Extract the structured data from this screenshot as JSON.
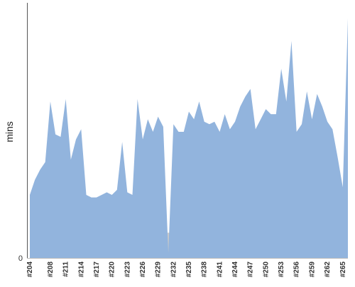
{
  "chart_data": {
    "type": "area",
    "title": "",
    "xlabel": "",
    "ylabel": "mins",
    "ylim": [
      0,
      100
    ],
    "grid": false,
    "legend": "none",
    "colors": {
      "fill": "#92b4dd",
      "gap_fill": "#c9c9c9",
      "axis": "#555555"
    },
    "y_ticks": [
      0
    ],
    "y_tick_labels": [
      "0"
    ],
    "x_tick_labels": [
      "#204",
      "#208",
      "#211",
      "#214",
      "#217",
      "#220",
      "#223",
      "#226",
      "#229",
      "#232",
      "#235",
      "#238",
      "#241",
      "#244",
      "#247",
      "#250",
      "#253",
      "#256",
      "#259",
      "#262",
      "#265"
    ],
    "categories": [
      "#204",
      "#205",
      "#206",
      "#207",
      "#208",
      "#209",
      "#210",
      "#211",
      "#212",
      "#213",
      "#214",
      "#215",
      "#216",
      "#217",
      "#218",
      "#219",
      "#220",
      "#221",
      "#222",
      "#223",
      "#224",
      "#225",
      "#226",
      "#227",
      "#228",
      "#229",
      "#230",
      "#231",
      "#232",
      "#233",
      "#234",
      "#235",
      "#236",
      "#237",
      "#238",
      "#239",
      "#240",
      "#241",
      "#242",
      "#243",
      "#244",
      "#245",
      "#246",
      "#247",
      "#248",
      "#249",
      "#250",
      "#251",
      "#252",
      "#253",
      "#254",
      "#255",
      "#256",
      "#257",
      "#258",
      "#259",
      "#260",
      "#261",
      "#262",
      "#263",
      "#264",
      "#265",
      "#266"
    ],
    "values": [
      25,
      31,
      35,
      38,
      62,
      49,
      48,
      63,
      39,
      47,
      51,
      25,
      24,
      24,
      25,
      26,
      25,
      27,
      46,
      26,
      25,
      63,
      47,
      55,
      50,
      56,
      52,
      2,
      53,
      50,
      50,
      58,
      55,
      62,
      54,
      53,
      54,
      50,
      57,
      51,
      54,
      60,
      64,
      67,
      51,
      55,
      59,
      57,
      57,
      75,
      62,
      86,
      50,
      53,
      66,
      55,
      65,
      60,
      54,
      51,
      40,
      28,
      95
    ]
  }
}
